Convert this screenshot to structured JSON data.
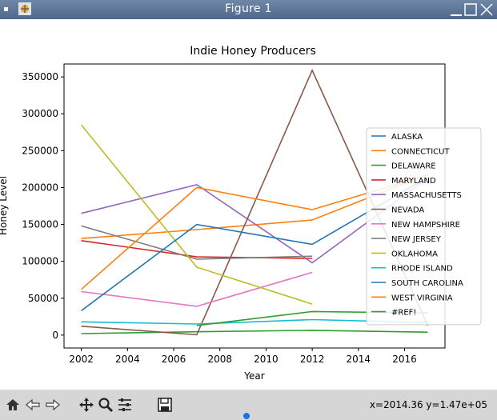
{
  "window": {
    "title": "Figure 1"
  },
  "status": {
    "coords": "x=2014.36 y=1.47e+05"
  },
  "toolbar": {
    "tools": [
      "home-icon",
      "back-arrow-icon",
      "forward-arrow-icon",
      "pan-icon",
      "zoom-icon",
      "configure-subplots-icon",
      "save-icon"
    ]
  },
  "chart_data": {
    "type": "line",
    "title": "Indie Honey Producers",
    "xlabel": "Year",
    "ylabel": "Honey Level",
    "xlim": [
      2001.25,
      2017.75
    ],
    "ylim": [
      -17500,
      367500
    ],
    "xticks": [
      2002,
      2004,
      2006,
      2008,
      2010,
      2012,
      2014,
      2016
    ],
    "yticks": [
      0,
      50000,
      100000,
      150000,
      200000,
      250000,
      300000,
      350000
    ],
    "x": [
      2002,
      2007,
      2012,
      2017
    ],
    "legend_position": "right",
    "series": [
      {
        "name": "ALASKA",
        "color": "#1f77b4",
        "values": [
          null,
          null,
          null,
          null
        ]
      },
      {
        "name": "CONNECTICUT",
        "color": "#ff7f0e",
        "values": [
          131000,
          143000,
          156000,
          218000
        ]
      },
      {
        "name": "DELAWARE",
        "color": "#2ca02c",
        "values": [
          2000,
          4500,
          6500,
          4000
        ]
      },
      {
        "name": "MARYLAND",
        "color": "#d62728",
        "values": [
          128000,
          106000,
          104000,
          null
        ]
      },
      {
        "name": "MASSACHUSETTS",
        "color": "#9467bd",
        "values": [
          165000,
          204000,
          98000,
          213000
        ]
      },
      {
        "name": "NEVADA",
        "color": "#8c564b",
        "values": [
          12000,
          500,
          359000,
          13000
        ]
      },
      {
        "name": "NEW HAMPSHIRE",
        "color": "#e377c2",
        "values": [
          59000,
          39000,
          85000,
          null
        ]
      },
      {
        "name": "NEW JERSEY",
        "color": "#7f7f7f",
        "values": [
          148000,
          103000,
          107000,
          null
        ]
      },
      {
        "name": "OKLAHOMA",
        "color": "#bcbd22",
        "values": [
          285000,
          92000,
          42000,
          null
        ]
      },
      {
        "name": "RHODE ISLAND",
        "color": "#17becf",
        "values": [
          18000,
          15000,
          21000,
          17000
        ]
      },
      {
        "name": "SOUTH CAROLINA",
        "color": "#1f77b4",
        "values": [
          33000,
          150000,
          123000,
          214000
        ]
      },
      {
        "name": "WEST VIRGINIA",
        "color": "#ff7f0e",
        "values": [
          62000,
          200000,
          170000,
          217000
        ]
      },
      {
        "name": "#REF!",
        "color": "#2ca02c",
        "values": [
          null,
          13000,
          32000,
          30000
        ]
      }
    ]
  }
}
